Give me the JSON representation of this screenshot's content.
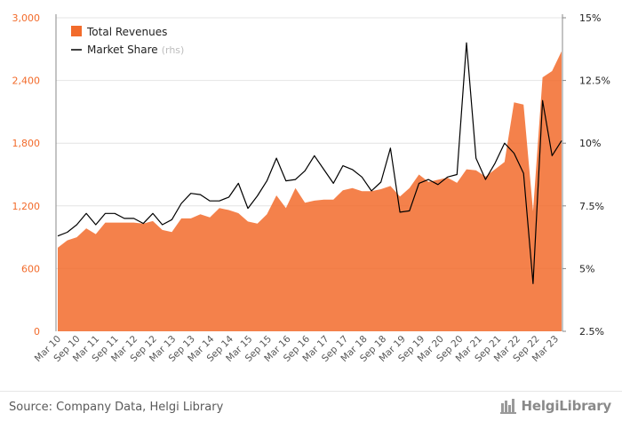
{
  "chart_data": {
    "type": "area",
    "x_ticks": [
      "Mar 10",
      "Sep 10",
      "Mar 11",
      "Sep 11",
      "Mar 12",
      "Sep 12",
      "Mar 13",
      "Sep 13",
      "Mar 14",
      "Sep 14",
      "Mar 15",
      "Sep 15",
      "Mar 16",
      "Sep 16",
      "Mar 17",
      "Sep 17",
      "Mar 18",
      "Sep 18",
      "Mar 19",
      "Sep 19",
      "Mar 20",
      "Sep 20",
      "Mar 21",
      "Sep 21",
      "Mar 22",
      "Sep 22",
      "Mar 23"
    ],
    "y_left": {
      "ticks": [
        "0",
        "600",
        "1,200",
        "1,800",
        "2,400",
        "3,000"
      ],
      "range": [
        0,
        3000
      ]
    },
    "y_right": {
      "ticks": [
        "2.5%",
        "5%",
        "7.5%",
        "10%",
        "12.5%",
        "15%"
      ],
      "range": [
        2.5,
        15
      ]
    },
    "series": [
      {
        "name": "Total Revenues",
        "kind": "area",
        "color": "#f26b2b",
        "values": [
          800,
          870,
          900,
          985,
          930,
          1040,
          1040,
          1040,
          1040,
          1030,
          1055,
          970,
          950,
          1080,
          1080,
          1120,
          1090,
          1180,
          1160,
          1130,
          1050,
          1030,
          1120,
          1300,
          1180,
          1370,
          1230,
          1250,
          1260,
          1260,
          1350,
          1370,
          1340,
          1340,
          1360,
          1390,
          1290,
          1370,
          1500,
          1430,
          1450,
          1470,
          1420,
          1550,
          1540,
          1480,
          1550,
          1620,
          2190,
          2170,
          1150,
          2430,
          2490,
          2680
        ]
      },
      {
        "name": "Market Share",
        "label_suffix": "(rhs)",
        "kind": "line",
        "color": "#000000",
        "axis": "right",
        "values": [
          6.3,
          6.45,
          6.75,
          7.2,
          6.75,
          7.2,
          7.2,
          7.0,
          7.0,
          6.8,
          7.2,
          6.75,
          6.95,
          7.6,
          8.0,
          7.95,
          7.7,
          7.7,
          7.85,
          8.4,
          7.4,
          7.9,
          8.5,
          9.4,
          8.5,
          8.55,
          8.9,
          9.5,
          8.95,
          8.4,
          9.1,
          8.95,
          8.65,
          8.1,
          8.45,
          9.8,
          7.25,
          7.3,
          8.4,
          8.55,
          8.35,
          8.65,
          8.75,
          14.0,
          9.4,
          8.55,
          9.2,
          10.0,
          9.6,
          8.8,
          4.4,
          11.7,
          9.5,
          10.1
        ]
      }
    ],
    "grid": "horizontal",
    "legend_position": "top-left"
  },
  "legend": {
    "revenues_label": "Total Revenues",
    "share_label": "Market Share",
    "share_suffix": "(rhs)"
  },
  "footer": {
    "source": "Source: Company Data, Helgi Library",
    "logo": "HelgiLibrary"
  }
}
